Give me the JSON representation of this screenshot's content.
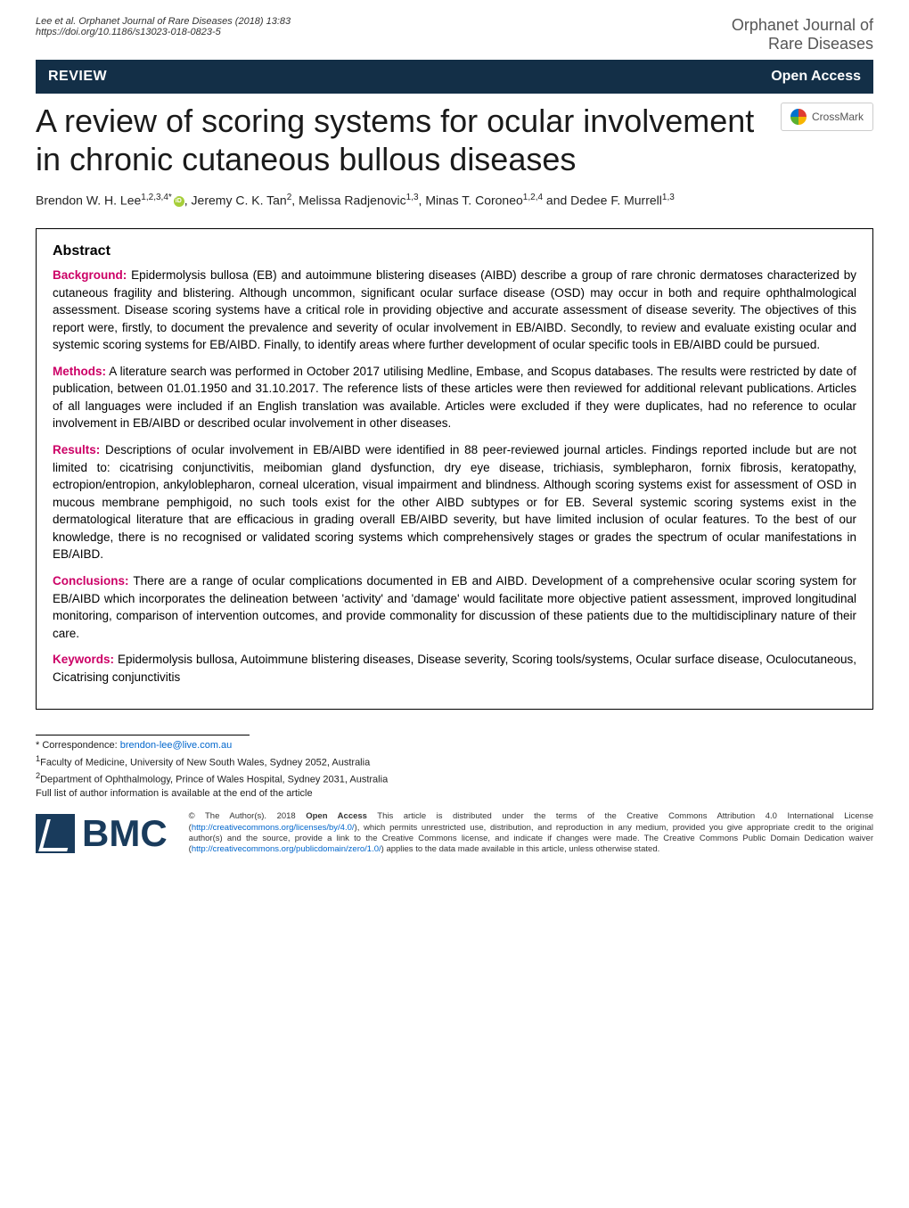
{
  "header": {
    "citation_line1": "Lee et al. Orphanet Journal of Rare Diseases  (2018) 13:83",
    "citation_line2": "https://doi.org/10.1186/s13023-018-0823-5",
    "journal_line1": "Orphanet Journal of",
    "journal_line2": "Rare Diseases"
  },
  "banner": {
    "review_label": "REVIEW",
    "open_access_label": "Open Access"
  },
  "article": {
    "title": "A review of scoring systems for ocular involvement in chronic cutaneous bullous diseases",
    "crossmark_label": "CrossMark"
  },
  "authors": {
    "list": "Brendon W. H. Lee",
    "aff1": "1,2,3,4*",
    "orcid": true,
    "rest": ", Jeremy C. K. Tan",
    "aff2": "2",
    "rest2": ", Melissa Radjenovic",
    "aff3": "1,3",
    "rest3": ", Minas T. Coroneo",
    "aff4": "1,2,4",
    "rest4": " and Dedee F. Murrell",
    "aff5": "1,3"
  },
  "abstract": {
    "heading": "Abstract",
    "background_label": "Background:",
    "background_text": " Epidermolysis bullosa (EB) and autoimmune blistering diseases (AIBD) describe a group of rare chronic dermatoses characterized by cutaneous fragility and blistering. Although uncommon, significant ocular surface disease (OSD) may occur in both and require ophthalmological assessment. Disease scoring systems have a critical role in providing objective and accurate assessment of disease severity. The objectives of this report were, firstly, to document the prevalence and severity of ocular involvement in EB/AIBD. Secondly, to review and evaluate existing ocular and systemic scoring systems for EB/AIBD. Finally, to identify areas where further development of ocular specific tools in EB/AIBD could be pursued.",
    "methods_label": "Methods:",
    "methods_text": " A literature search was performed in October 2017 utilising Medline, Embase, and Scopus databases. The results were restricted by date of publication, between 01.01.1950 and 31.10.2017. The reference lists of these articles were then reviewed for additional relevant publications. Articles of all languages were included if an English translation was available. Articles were excluded if they were duplicates, had no reference to ocular involvement in EB/AIBD or described ocular involvement in other diseases.",
    "results_label": "Results:",
    "results_text": " Descriptions of ocular involvement in EB/AIBD were identified in 88 peer-reviewed journal articles. Findings reported include but are not limited to: cicatrising conjunctivitis, meibomian gland dysfunction, dry eye disease, trichiasis, symblepharon, fornix fibrosis, keratopathy, ectropion/entropion, ankyloblepharon, corneal ulceration, visual impairment and blindness. Although scoring systems exist for assessment of OSD in mucous membrane pemphigoid, no such tools exist for the other AIBD subtypes or for EB. Several systemic scoring systems exist in the dermatological literature that are efficacious in grading overall EB/AIBD severity, but have limited inclusion of ocular features. To the best of our knowledge, there is no recognised or validated scoring systems which comprehensively stages or grades the spectrum of ocular manifestations in EB/AIBD.",
    "conclusions_label": "Conclusions:",
    "conclusions_text": " There are a range of ocular complications documented in EB and AIBD. Development of a comprehensive ocular scoring system for EB/AIBD which incorporates the delineation between 'activity' and 'damage' would facilitate more objective patient assessment, improved longitudinal monitoring, comparison of intervention outcomes, and provide commonality for discussion of these patients due to the multidisciplinary nature of their care.",
    "keywords_label": "Keywords:",
    "keywords_text": " Epidermolysis bullosa, Autoimmune blistering diseases, Disease severity, Scoring tools/systems, Ocular surface disease, Oculocutaneous, Cicatrising conjunctivitis"
  },
  "correspondence": {
    "star": "* Correspondence: ",
    "email": "brendon-lee@live.com.au",
    "aff1": "Faculty of Medicine, University of New South Wales, Sydney 2052, Australia",
    "aff1_num": "1",
    "aff2": "Department of Ophthalmology, Prince of Wales Hospital, Sydney 2031, Australia",
    "aff2_num": "2",
    "full_list": "Full list of author information is available at the end of the article"
  },
  "footer": {
    "bmc_text": "BMC",
    "license_prefix": "© The Author(s). 2018 ",
    "license_bold": "Open Access",
    "license_text1": " This article is distributed under the terms of the Creative Commons Attribution 4.0 International License (",
    "license_link1": "http://creativecommons.org/licenses/by/4.0/",
    "license_text2": "), which permits unrestricted use, distribution, and reproduction in any medium, provided you give appropriate credit to the original author(s) and the source, provide a link to the Creative Commons license, and indicate if changes were made. The Creative Commons Public Domain Dedication waiver (",
    "license_link2": "http://creativecommons.org/publicdomain/zero/1.0/",
    "license_text3": ") applies to the data made available in this article, unless otherwise stated."
  },
  "colors": {
    "banner_bg": "#132f47",
    "accent_label": "#cc0066",
    "link_color": "#0066cc",
    "orcid_green": "#a6ce39"
  }
}
